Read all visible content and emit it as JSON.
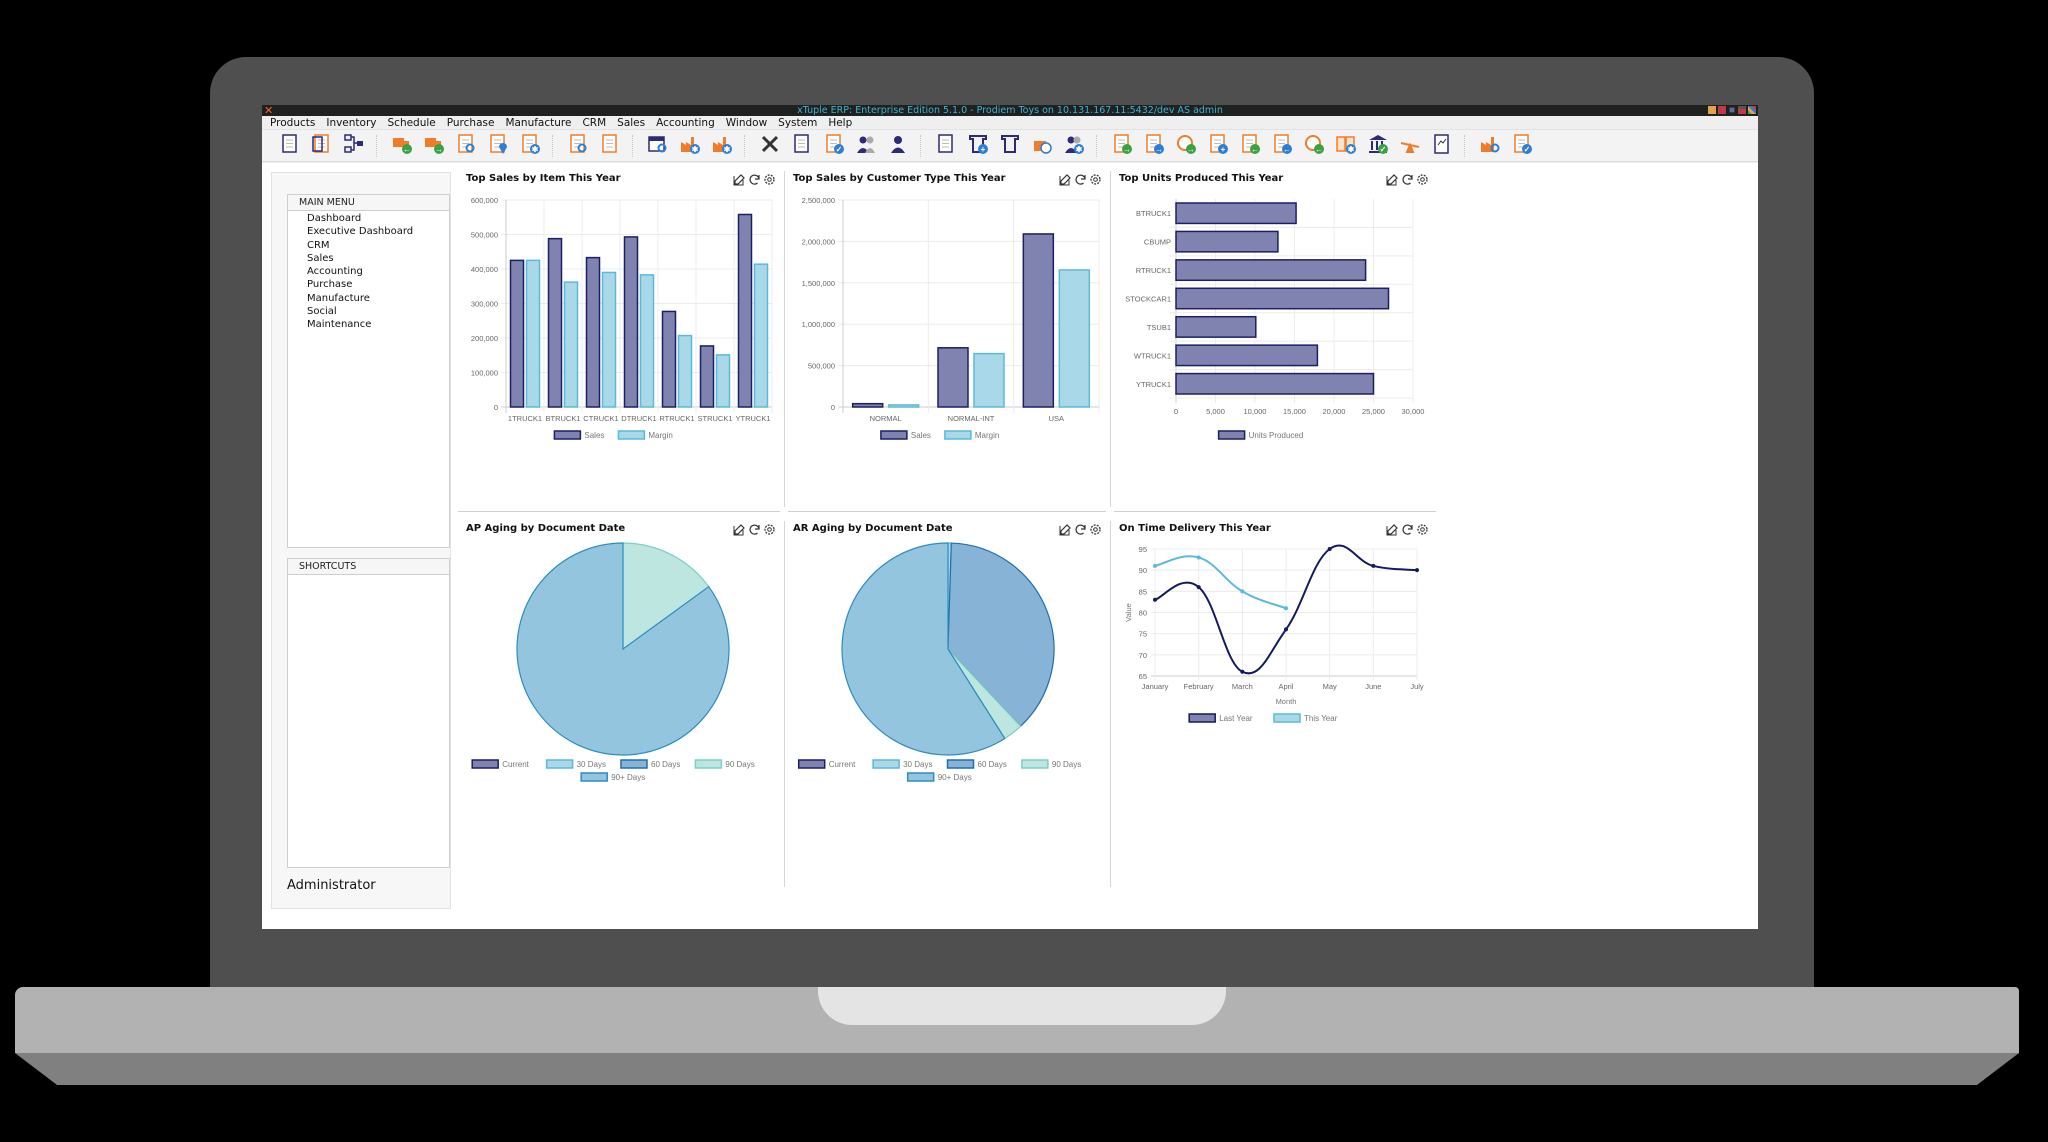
{
  "window": {
    "title": "xTuple ERP: Enterprise Edition 5.1.0 - Prodiem Toys on 10.131.167.11:5432/dev AS admin"
  },
  "menubar": [
    "Products",
    "Inventory",
    "Schedule",
    "Purchase",
    "Manufacture",
    "CRM",
    "Sales",
    "Accounting",
    "Window",
    "System",
    "Help"
  ],
  "toolbar": {
    "groups": [
      [
        "item-list-icon",
        "bill-of-materials-icon",
        "item-hierarchy-icon"
      ],
      [
        "receive-truck-icon",
        "ship-truck-icon",
        "item-search-icon",
        "item-location-icon",
        "item-settings-icon"
      ],
      [
        "price-search-icon",
        "price-list-icon"
      ],
      [
        "calendar-search-icon",
        "factory-settings-icon",
        "factory-settings-2-icon"
      ],
      [
        "tools-icon",
        "checklist-icon",
        "clipboard-check-icon",
        "contacts-icon",
        "user-icon"
      ],
      [
        "order-list-icon",
        "add-terminal-icon",
        "terminal-icon",
        "package-timer-icon",
        "user-settings-icon"
      ],
      [
        "invoice-forward-icon",
        "document-forward-icon",
        "clock-forward-icon",
        "checklist-add-icon",
        "invoice-back-icon",
        "invoice-back-blue-icon",
        "clock-back-icon",
        "ledger-settings-icon",
        "bank-check-icon",
        "balance-icon",
        "chart-report-icon"
      ],
      [
        "factory-search-icon",
        "document-check-icon"
      ]
    ]
  },
  "sidebar": {
    "main_menu": {
      "header": "MAIN MENU",
      "items": [
        "Dashboard",
        "Executive Dashboard",
        "CRM",
        "Sales",
        "Accounting",
        "Purchase",
        "Manufacture",
        "Social",
        "Maintenance"
      ]
    },
    "shortcuts": {
      "header": "SHORTCUTS",
      "items": []
    },
    "user": "Administrator"
  },
  "colors": {
    "sales_fill": "#8082b0",
    "sales_border": "#1b1f66",
    "margin_fill": "#a9d8e8",
    "margin_border": "#5bbad9",
    "pie_90plus": "#94c5df",
    "pie_60": "#86b3d6",
    "pie_90": "#bde6e1",
    "pie_border": "#2e8bc0",
    "line_last": "#141a5e",
    "line_this": "#5bbad9"
  },
  "panels": [
    {
      "title": "Top Sales by Item This Year"
    },
    {
      "title": "Top Sales by Customer Type This Year"
    },
    {
      "title": "Top Units Produced This Year"
    },
    {
      "title": "AP Aging by Document Date"
    },
    {
      "title": "AR Aging by Document Date"
    },
    {
      "title": "On Time Delivery This Year"
    }
  ],
  "chart_data": [
    {
      "type": "bar",
      "title": "Top Sales by Item This Year",
      "categories": [
        "1TRUCK1",
        "BTRUCK1",
        "CTRUCK1",
        "DTRUCK1",
        "RTRUCK1",
        "STRUCK1",
        "YTRUCK1"
      ],
      "series": [
        {
          "name": "Sales",
          "values": [
            425000,
            488000,
            433000,
            493000,
            277000,
            177000,
            558000
          ]
        },
        {
          "name": "Margin",
          "values": [
            425000,
            362000,
            390000,
            383000,
            207000,
            151000,
            414000
          ]
        }
      ],
      "yticks": [
        "0",
        "100,000",
        "200,000",
        "300,000",
        "400,000",
        "500,000",
        "600,000"
      ],
      "ylim": [
        0,
        600000
      ],
      "legend_position": "bottom",
      "grid": true
    },
    {
      "type": "bar",
      "title": "Top Sales by Customer Type This Year",
      "categories": [
        "NORMAL",
        "NORMAL-INT",
        "USA"
      ],
      "series": [
        {
          "name": "Sales",
          "values": [
            40000,
            715000,
            2090000
          ]
        },
        {
          "name": "Margin",
          "values": [
            25000,
            645000,
            1655000
          ]
        }
      ],
      "yticks": [
        "0",
        "500,000",
        "1,000,000",
        "1,500,000",
        "2,000,000",
        "2,500,000"
      ],
      "ylim": [
        0,
        2500000
      ],
      "legend_position": "bottom",
      "grid": true
    },
    {
      "type": "bar",
      "orientation": "horizontal",
      "title": "Top Units Produced This Year",
      "categories": [
        "BTRUCK1",
        "CBUMP",
        "RTRUCK1",
        "STOCKCAR1",
        "TSUB1",
        "WTRUCK1",
        "YTRUCK1"
      ],
      "series": [
        {
          "name": "Units Produced",
          "values": [
            15200,
            12900,
            24000,
            26900,
            10100,
            17900,
            25000
          ]
        }
      ],
      "xticks": [
        "0",
        "5,000",
        "10,000",
        "15,000",
        "20,000",
        "25,000",
        "30,000"
      ],
      "xlim": [
        0,
        30000
      ],
      "legend_position": "bottom",
      "grid": true
    },
    {
      "type": "pie",
      "title": "AP Aging by Document Date",
      "labels": [
        "Current",
        "30 Days",
        "60 Days",
        "90 Days",
        "90+ Days"
      ],
      "values": [
        0,
        0,
        0,
        15,
        85
      ],
      "legend_position": "bottom"
    },
    {
      "type": "pie",
      "title": "AR Aging by Document Date",
      "labels": [
        "Current",
        "30 Days",
        "60 Days",
        "90 Days",
        "90+ Days"
      ],
      "values": [
        0,
        0.5,
        37.5,
        3,
        59
      ],
      "legend_position": "bottom"
    },
    {
      "type": "line",
      "title": "On Time Delivery This Year",
      "x": [
        "January",
        "February",
        "March",
        "April",
        "May",
        "June",
        "July"
      ],
      "series": [
        {
          "name": "Last Year",
          "values": [
            83,
            86,
            66,
            76,
            95,
            91,
            90
          ]
        },
        {
          "name": "This Year",
          "values": [
            91,
            93,
            85,
            81
          ]
        }
      ],
      "yticks": [
        "65",
        "70",
        "75",
        "80",
        "85",
        "90",
        "95"
      ],
      "ylim": [
        65,
        95
      ],
      "xlabel": "Month",
      "ylabel": "Value",
      "legend_position": "bottom",
      "grid": true
    }
  ]
}
